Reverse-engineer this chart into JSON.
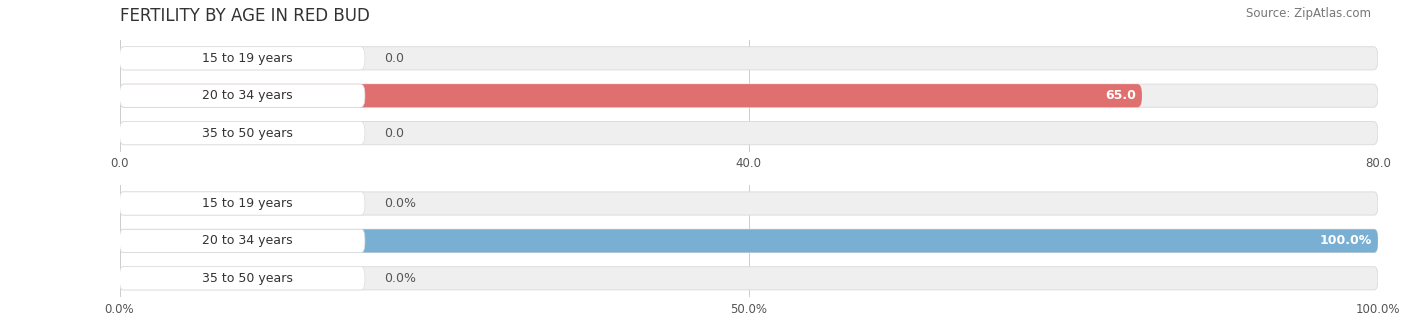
{
  "title": "FERTILITY BY AGE IN RED BUD",
  "source": "Source: ZipAtlas.com",
  "top_chart": {
    "categories": [
      "15 to 19 years",
      "20 to 34 years",
      "35 to 50 years"
    ],
    "values": [
      0.0,
      65.0,
      0.0
    ],
    "xlim": [
      0,
      80.0
    ],
    "xticks": [
      0.0,
      40.0,
      80.0
    ],
    "xticklabels": [
      "0.0",
      "40.0",
      "80.0"
    ],
    "bar_color": "#E07070",
    "bar_bg_color": "#EFEFEF",
    "bar_border_color": "#DDDDDD",
    "label_pill_color": "#FFFFFF",
    "label_inside_color": "#FFFFFF",
    "label_outside_color": "#555555",
    "label_threshold_pct": 0.1
  },
  "bottom_chart": {
    "categories": [
      "15 to 19 years",
      "20 to 34 years",
      "35 to 50 years"
    ],
    "values": [
      0.0,
      100.0,
      0.0
    ],
    "xlim": [
      0,
      100.0
    ],
    "xticks": [
      0.0,
      50.0,
      100.0
    ],
    "xticklabels": [
      "0.0%",
      "50.0%",
      "100.0%"
    ],
    "bar_color": "#7AAFD4",
    "bar_bg_color": "#EFEFEF",
    "bar_border_color": "#DDDDDD",
    "label_pill_color": "#FFFFFF",
    "label_inside_color": "#FFFFFF",
    "label_outside_color": "#555555",
    "label_threshold_pct": 0.1
  },
  "bg_color": "#FFFFFF",
  "label_fontsize": 9,
  "category_fontsize": 9,
  "title_fontsize": 12,
  "source_fontsize": 8.5,
  "title_color": "#333333",
  "source_color": "#777777",
  "tick_color": "#555555",
  "grid_color": "#CCCCCC"
}
